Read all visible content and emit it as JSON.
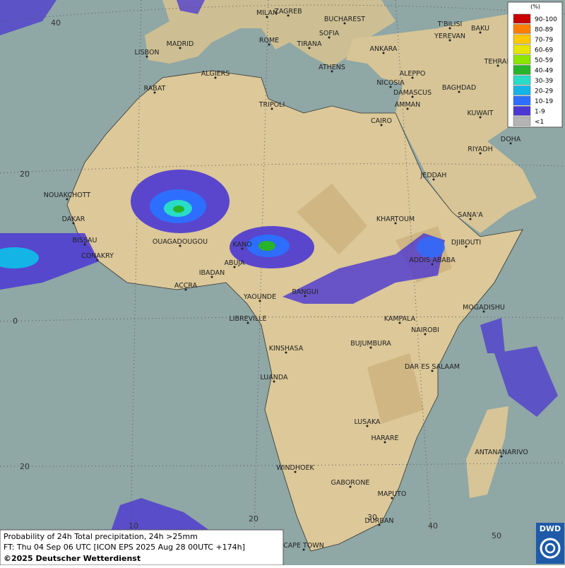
{
  "cities": [
    "MILAN",
    "ZAGREB",
    "BUCHAREST",
    "T'BILISI",
    "BAKU",
    "SOFIA",
    "YEREVAN",
    "MADRID",
    "ROME",
    "TIRANA",
    "ANKARA",
    "TEHRAN",
    "LISBON",
    "ATHENS",
    "ALGIERS",
    "ALEPPO",
    "RABAT",
    "NICOSIA",
    "BAGHDAD",
    "TRIPOLI",
    "DAMASCUS",
    "AMMAN",
    "KUWAIT",
    "CAIRO",
    "DOHA",
    "RIYADH",
    "JEDDAH",
    "NOUAKCHOTT",
    "DAKAR",
    "KHARTOUM",
    "SANA'A",
    "BISSAU",
    "DJIBOUTI",
    "OUAGADOUGOU",
    "KANO",
    "CONAKRY",
    "ABUJA",
    "ADDIS ABABA",
    "IBADAN",
    "ACCRA",
    "BANGUI",
    "YAOUNDE",
    "MOGADISHU",
    "LIBREVILLE",
    "KAMPALA",
    "NAIROBI",
    "BUJUMBURA",
    "KINSHASA",
    "DAR ES SALAAM",
    "LUANDA",
    "LUSAKA",
    "HARARE",
    "ANTANANARIVO",
    "WINDHOEK",
    "GABORONE",
    "MAPUTO",
    "DURBAN",
    "CAPE TOWN"
  ],
  "lat_labels": [
    40,
    20,
    0,
    20
  ],
  "lon_labels": [
    10,
    20,
    30,
    40,
    50
  ],
  "legend": {
    "title": "(%)",
    "entries": [
      {
        "label": "90-100",
        "color": "#c80000"
      },
      {
        "label": "80-89",
        "color": "#ff7d00"
      },
      {
        "label": "70-79",
        "color": "#ffc800"
      },
      {
        "label": "60-69",
        "color": "#e6e600"
      },
      {
        "label": "50-59",
        "color": "#8ce600"
      },
      {
        "label": "40-49",
        "color": "#28b428"
      },
      {
        "label": "30-39",
        "color": "#28dcc8"
      },
      {
        "label": "20-29",
        "color": "#14b4e6"
      },
      {
        "label": "10-19",
        "color": "#2d6eff"
      },
      {
        "label": "1-9",
        "color": "#4b37d2"
      },
      {
        "label": "<1",
        "color": "#b4b4b4"
      }
    ]
  },
  "footer": {
    "line1": "Probability of 24h Total precipitation, 24h >25mm",
    "line2": "FT: Thu 04 Sep 06 UTC [ICON EPS 2025 Aug 28 00UTC +174h]",
    "line3": "©2025 Deutscher Wetterdienst"
  },
  "logo": "DWD"
}
